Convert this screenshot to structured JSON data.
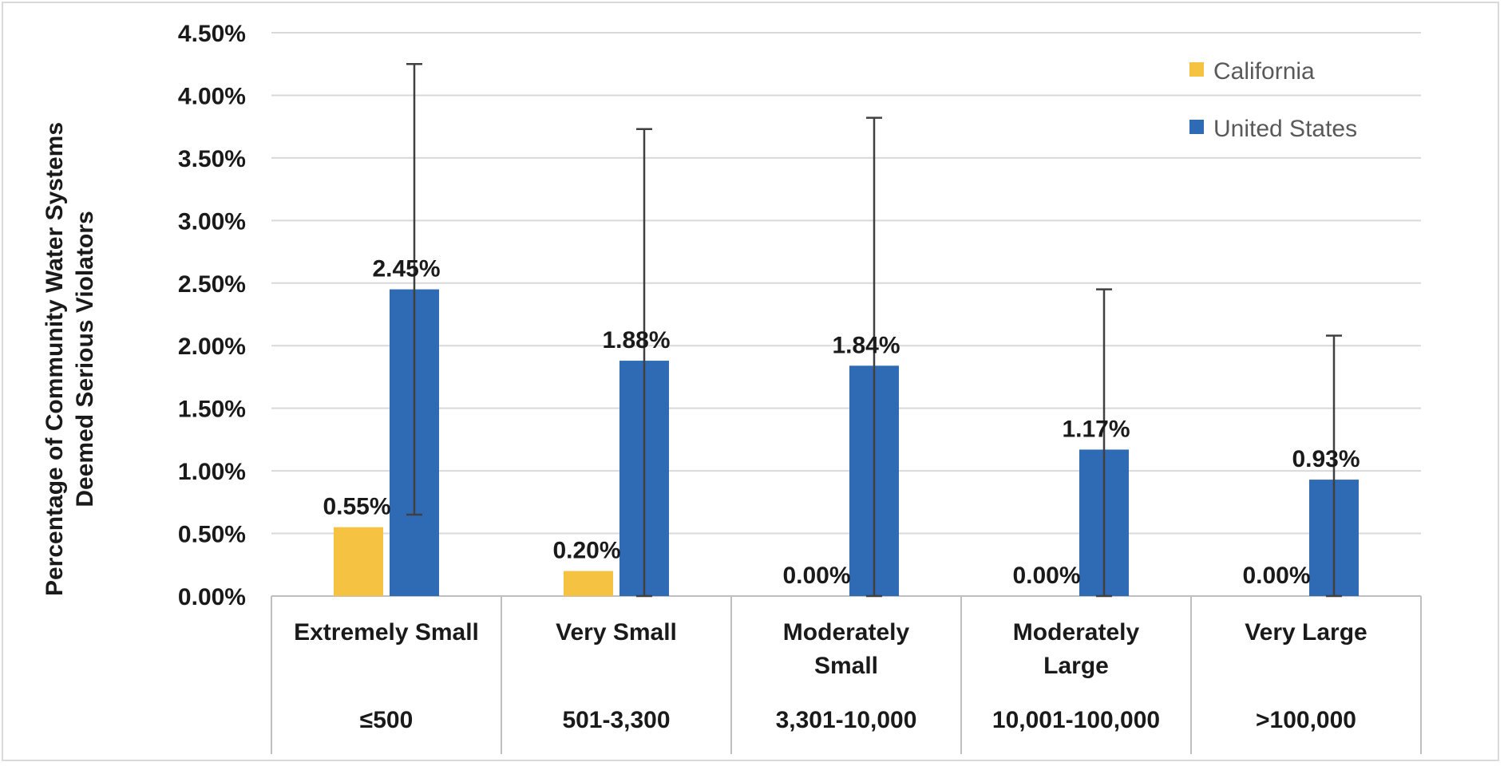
{
  "chart_data": {
    "type": "bar",
    "title": "",
    "ylabel_lines": [
      "Percentage of Community Water Systems",
      "Deemed Serious Violators"
    ],
    "xlabel": "",
    "ylim": [
      0,
      4.5
    ],
    "y_ticks": [
      "0.00%",
      "0.50%",
      "1.00%",
      "1.50%",
      "2.00%",
      "2.50%",
      "3.00%",
      "3.50%",
      "4.00%",
      "4.50%"
    ],
    "y_tick_values": [
      0,
      0.5,
      1.0,
      1.5,
      2.0,
      2.5,
      3.0,
      3.5,
      4.0,
      4.5
    ],
    "grid": true,
    "legend_position": "top-right",
    "categories": [
      {
        "name_lines": [
          "Extremely Small"
        ],
        "size": "≤500"
      },
      {
        "name_lines": [
          "Very Small"
        ],
        "size": "501-3,300"
      },
      {
        "name_lines": [
          "Moderately",
          "Small"
        ],
        "size": "3,301-10,000"
      },
      {
        "name_lines": [
          "Moderately",
          "Large"
        ],
        "size": "10,001-100,000"
      },
      {
        "name_lines": [
          "Very Large"
        ],
        "size": ">100,000"
      }
    ],
    "series": [
      {
        "name": "California",
        "color": "#f5c242",
        "values": [
          0.55,
          0.2,
          0.0,
          0.0,
          0.0
        ],
        "labels": [
          "0.55%",
          "0.20%",
          "0.00%",
          "0.00%",
          "0.00%"
        ]
      },
      {
        "name": "United States",
        "color": "#2f6bb4",
        "values": [
          2.45,
          1.88,
          1.84,
          1.17,
          0.93
        ],
        "labels": [
          "2.45%",
          "1.88%",
          "1.84%",
          "1.17%",
          "0.93%"
        ],
        "error_low": [
          0.65,
          0.0,
          0.0,
          0.0,
          0.0
        ],
        "error_high": [
          4.25,
          3.73,
          3.82,
          2.45,
          2.08
        ]
      }
    ]
  }
}
